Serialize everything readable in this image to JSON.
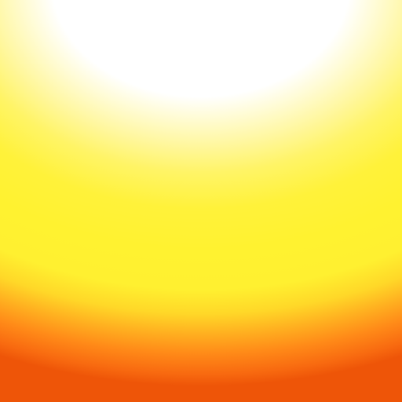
{
  "colors": {
    "core": "#ffffff",
    "pale_yellow": "#fff7a0",
    "yellow": "#fff230",
    "amber": "#ffb020",
    "orange": "#f86a10",
    "deep_orange": "#ee5508"
  }
}
